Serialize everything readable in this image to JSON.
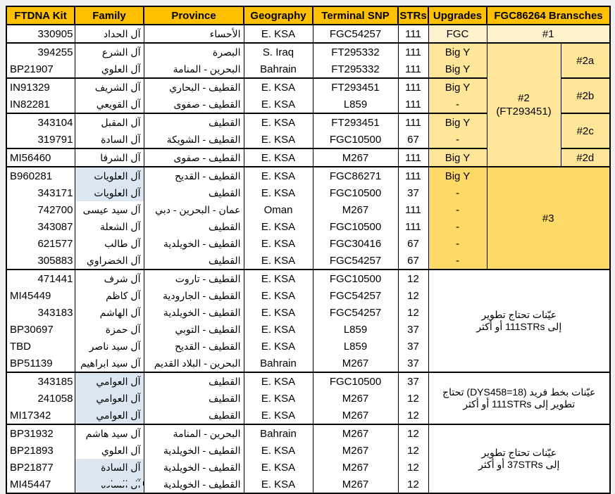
{
  "table": {
    "columns": [
      "FTDNA Kit",
      "Family",
      "Province",
      "Geography",
      "Terminal SNP",
      "STRs",
      "Upgrades",
      "FGC86264 Bransches"
    ]
  },
  "colors": {
    "header_fill": "#FFC000",
    "branch1_fill": "#FFF2CC",
    "branch2_fill": "#FFE699",
    "branch3_fill": "#FFD966",
    "family_highlight_fill": "#DCE6F1",
    "border": "#000000"
  },
  "rows": [
    {
      "kit": "330905",
      "ka": "r",
      "family": "آل الحداد",
      "fh": 0,
      "province": "الأحساء",
      "geo": "E. KSA",
      "snp": "FGC54257",
      "strs": "111",
      "upg": "FGC",
      "ubg": "cream"
    },
    {
      "kit": "394255",
      "ka": "r",
      "family": "آل الشرع",
      "fh": 0,
      "province": "البصرة",
      "geo": "S. Iraq",
      "snp": "FT295332",
      "strs": "111",
      "upg": "Big Y",
      "ubg": "light"
    },
    {
      "kit": "BP21907",
      "ka": "l",
      "family": "آل العلوي",
      "fh": 0,
      "province": "البحرين - المنامة",
      "geo": "Bahrain",
      "snp": "FT295332",
      "strs": "111",
      "upg": "Big Y",
      "ubg": "light"
    },
    {
      "kit": "IN91329",
      "ka": "l",
      "family": "آل الشريف",
      "fh": 0,
      "province": "القطيف - البحاري",
      "geo": "E. KSA",
      "snp": "FT293451",
      "strs": "111",
      "upg": "Big Y",
      "ubg": "light"
    },
    {
      "kit": "IN82281",
      "ka": "l",
      "family": "آل القويعي",
      "fh": 0,
      "province": "القطيف - صفوى",
      "geo": "E. KSA",
      "snp": "L859",
      "strs": "111",
      "upg": "-",
      "ubg": "light"
    },
    {
      "kit": "343104",
      "ka": "r",
      "family": "آل المقبل",
      "fh": 0,
      "province": "القطيف",
      "geo": "E. KSA",
      "snp": "FT293451",
      "strs": "111",
      "upg": "Big Y",
      "ubg": "light"
    },
    {
      "kit": "319791",
      "ka": "r",
      "family": "آل السادة",
      "fh": 0,
      "province": "القطيف - الشويكة",
      "geo": "E. KSA",
      "snp": "FGC10500",
      "strs": "67",
      "upg": "-",
      "ubg": "light"
    },
    {
      "kit": "MI56460",
      "ka": "l",
      "family": "آل الشرفا",
      "fh": 0,
      "province": "القطيف - صفوى",
      "geo": "E. KSA",
      "snp": "M267",
      "strs": "111",
      "upg": "Big Y",
      "ubg": "light"
    },
    {
      "kit": "B960281",
      "ka": "l",
      "family": "آل العلويات",
      "fh": 1,
      "province": "القطيف - القديح",
      "geo": "E. KSA",
      "snp": "FGC86271",
      "strs": "111",
      "upg": "Big Y",
      "ubg": "gold"
    },
    {
      "kit": "343171",
      "ka": "r",
      "family": "آل العلويات",
      "fh": 1,
      "province": "القطيف",
      "geo": "E. KSA",
      "snp": "FGC10500",
      "strs": "37",
      "upg": "-",
      "ubg": "gold"
    },
    {
      "kit": "742700",
      "ka": "r",
      "family": "آل سيد عيسى",
      "fh": 0,
      "province": "عمان - البحرين - دبي",
      "geo": "Oman",
      "snp": "M267",
      "strs": "111",
      "upg": "-",
      "ubg": "gold"
    },
    {
      "kit": "343087",
      "ka": "r",
      "family": "آل الشعلة",
      "fh": 0,
      "province": "القطيف",
      "geo": "E. KSA",
      "snp": "FGC10500",
      "strs": "111",
      "upg": "-",
      "ubg": "gold"
    },
    {
      "kit": "621577",
      "ka": "r",
      "family": "آل طالب",
      "fh": 0,
      "province": "القطيف - الخويلدية",
      "geo": "E. KSA",
      "snp": "FGC30416",
      "strs": "67",
      "upg": "-",
      "ubg": "gold"
    },
    {
      "kit": "305883",
      "ka": "r",
      "family": "آل الخضراوي",
      "fh": 0,
      "province": "القطيف",
      "geo": "E. KSA",
      "snp": "FGC54257",
      "strs": "67",
      "upg": "-",
      "ubg": "gold"
    },
    {
      "kit": "471441",
      "ka": "r",
      "family": "آل شرف",
      "fh": 0,
      "province": "القطيف - تاروت",
      "geo": "E. KSA",
      "snp": "FGC10500",
      "strs": "12"
    },
    {
      "kit": "MI45449",
      "ka": "l",
      "family": "آل كاظم",
      "fh": 0,
      "province": "القطيف - الجارودية",
      "geo": "E. KSA",
      "snp": "FGC54257",
      "strs": "12"
    },
    {
      "kit": "343183",
      "ka": "r",
      "family": "آل الهاشم",
      "fh": 0,
      "province": "القطيف - الخويلدية",
      "geo": "E. KSA",
      "snp": "FGC54257",
      "strs": "12"
    },
    {
      "kit": "BP30697",
      "ka": "l",
      "family": "آل حمزة",
      "fh": 0,
      "province": "القطيف - التوبي",
      "geo": "E. KSA",
      "snp": "L859",
      "strs": "37"
    },
    {
      "kit": "TBD",
      "ka": "l",
      "family": "آل سيد ناصر",
      "fh": 0,
      "province": "القطيف - القديح",
      "geo": "E. KSA",
      "snp": "L859",
      "strs": "37"
    },
    {
      "kit": "BP51139",
      "ka": "l",
      "family": "آل سيد ابراهيم",
      "fh": 0,
      "province": "البحرين - البلاد القديم",
      "geo": "Bahrain",
      "snp": "M267",
      "strs": "37"
    },
    {
      "kit": "343185",
      "ka": "r",
      "family": "آل العوامي",
      "fh": 1,
      "province": "القطيف",
      "geo": "E. KSA",
      "snp": "FGC10500",
      "strs": "37"
    },
    {
      "kit": "241058",
      "ka": "r",
      "family": "آل العوامي",
      "fh": 1,
      "province": "القطيف",
      "geo": "E. KSA",
      "snp": "M267",
      "strs": "12"
    },
    {
      "kit": "MI17342",
      "ka": "l",
      "family": "آل العوامي",
      "fh": 1,
      "province": "القطيف",
      "geo": "E. KSA",
      "snp": "M267",
      "strs": "12"
    },
    {
      "kit": "BP31932",
      "ka": "l",
      "family": "آل سيد هاشم",
      "fh": 0,
      "province": "البحرين - المنامة",
      "geo": "Bahrain",
      "snp": "M267",
      "strs": "12"
    },
    {
      "kit": "BP21893",
      "ka": "l",
      "family": "آل العلوي",
      "fh": 0,
      "province": "القطيف - الخويلدية",
      "geo": "E. KSA",
      "snp": "M267",
      "strs": "12"
    },
    {
      "kit": "BP21877",
      "ka": "l",
      "family": "آل السادة",
      "fh": 1,
      "province": "القطيف - الخويلدية",
      "geo": "E. KSA",
      "snp": "M267",
      "strs": "12"
    },
    {
      "kit": "MI45447",
      "ka": "l",
      "family": "آل السادة",
      "fh": 1,
      "province": "القطيف - الخويلدية",
      "geo": "E. KSA",
      "snp": "M267",
      "strs": "12"
    }
  ],
  "branch_cells": [
    {
      "row": 0,
      "rowspan": 1,
      "kind": "full",
      "lines": [
        "#1"
      ],
      "bg": "cream"
    },
    {
      "row": 1,
      "rowspan": 7,
      "kind": "main",
      "lines": [
        "#2",
        "(FT293451)"
      ],
      "bg": "light"
    },
    {
      "row": 1,
      "rowspan": 2,
      "kind": "sub",
      "lines": [
        "#2a"
      ],
      "bg": "light"
    },
    {
      "row": 3,
      "rowspan": 2,
      "kind": "sub",
      "lines": [
        "#2b"
      ],
      "bg": "light"
    },
    {
      "row": 5,
      "rowspan": 2,
      "kind": "sub",
      "lines": [
        "#2c"
      ],
      "bg": "light"
    },
    {
      "row": 7,
      "rowspan": 1,
      "kind": "sub",
      "lines": [
        "#2d"
      ],
      "bg": "light"
    },
    {
      "row": 8,
      "rowspan": 6,
      "kind": "full",
      "lines": [
        "#3"
      ],
      "bg": "gold"
    },
    {
      "row": 14,
      "rowspan": 6,
      "kind": "note",
      "lines": [
        "عيّنات تحتاج تطوير",
        "إلى 111STRs أو أكثر"
      ],
      "bg": "white"
    },
    {
      "row": 20,
      "rowspan": 3,
      "kind": "note",
      "lines": [
        "عيّنات بخط فريد (DYS458=18) تحتاج",
        "تطوير إلى 111STRs أو أكثر"
      ],
      "bg": "white"
    },
    {
      "row": 23,
      "rowspan": 4,
      "kind": "note",
      "lines": [
        "عيّنات تحتاج تطوير",
        "إلى 37STRs أو أكثر"
      ],
      "bg": "white"
    }
  ],
  "layout": {
    "sep_rows": [
      1,
      3,
      5,
      7,
      8,
      14,
      20,
      23
    ]
  }
}
